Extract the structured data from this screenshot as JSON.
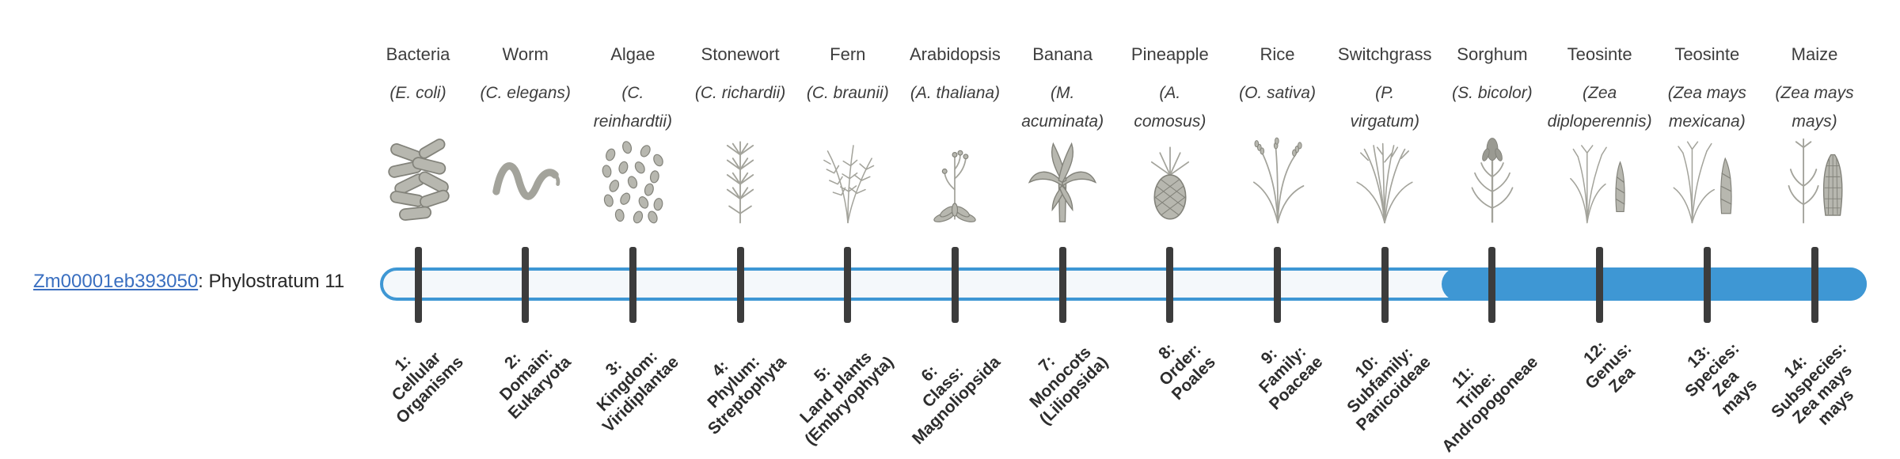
{
  "gene": {
    "id": "Zm00001eb393050",
    "suffix": ": Phylostratum 11",
    "phylostratum": 11
  },
  "track": {
    "color": "#3e97d4",
    "empty_color": "#f4f8fb",
    "filled_from_stratum": 11,
    "total_strata": 14
  },
  "organisms": [
    {
      "name": "Bacteria",
      "sci_lines": [
        "(E. coli)"
      ],
      "icon": "bacteria"
    },
    {
      "name": "Worm",
      "sci_lines": [
        "(C. elegans)"
      ],
      "icon": "worm"
    },
    {
      "name": "Algae",
      "sci_lines": [
        "(C.",
        "reinhardtii)"
      ],
      "icon": "algae"
    },
    {
      "name": "Stonewort",
      "sci_lines": [
        "(C. richardii)"
      ],
      "icon": "stonewort"
    },
    {
      "name": "Fern",
      "sci_lines": [
        "(C. braunii)"
      ],
      "icon": "fern"
    },
    {
      "name": "Arabidopsis",
      "sci_lines": [
        "(A. thaliana)"
      ],
      "icon": "arabidopsis"
    },
    {
      "name": "Banana",
      "sci_lines": [
        "(M.",
        "acuminata)"
      ],
      "icon": "banana"
    },
    {
      "name": "Pineapple",
      "sci_lines": [
        "(A.",
        "comosus)"
      ],
      "icon": "pineapple"
    },
    {
      "name": "Rice",
      "sci_lines": [
        "(O. sativa)"
      ],
      "icon": "rice"
    },
    {
      "name": "Switchgrass",
      "sci_lines": [
        "(P.",
        "virgatum)"
      ],
      "icon": "switchgrass"
    },
    {
      "name": "Sorghum",
      "sci_lines": [
        "(S. bicolor)"
      ],
      "icon": "sorghum"
    },
    {
      "name": "Teosinte",
      "sci_lines": [
        "(Zea",
        "diploperennis)"
      ],
      "icon": "teosinte-diploperennis"
    },
    {
      "name": "Teosinte",
      "sci_lines": [
        "(Zea mays",
        "mexicana)"
      ],
      "icon": "teosinte-mexicana"
    },
    {
      "name": "Maize",
      "sci_lines": [
        "(Zea mays",
        "mays)"
      ],
      "icon": "maize"
    }
  ],
  "strata": [
    {
      "label_lines": [
        "1:",
        "Cellular",
        "Organisms"
      ]
    },
    {
      "label_lines": [
        "2:",
        "Domain:",
        "Eukaryota"
      ]
    },
    {
      "label_lines": [
        "3:",
        "Kingdom:",
        "Viridiplantae"
      ]
    },
    {
      "label_lines": [
        "4:",
        "Phylum:",
        "Streptophyta"
      ]
    },
    {
      "label_lines": [
        "5:",
        "Land plants",
        "(Embryophyta)"
      ]
    },
    {
      "label_lines": [
        "6:",
        "Class:",
        "Magnoliopsida"
      ]
    },
    {
      "label_lines": [
        "7:",
        "Monocots",
        "(Liliopsida)"
      ]
    },
    {
      "label_lines": [
        "8:",
        "Order:",
        "Poales"
      ]
    },
    {
      "label_lines": [
        "9:",
        "Family:",
        "Poaceae"
      ]
    },
    {
      "label_lines": [
        "10:",
        "Subfamily:",
        "Panicoideae"
      ]
    },
    {
      "label_lines": [
        "11:",
        "Tribe:",
        "Andropogoneae"
      ]
    },
    {
      "label_lines": [
        "12:",
        "Genus:",
        "Zea"
      ]
    },
    {
      "label_lines": [
        "13:",
        "Species:",
        "Zea",
        "mays"
      ]
    },
    {
      "label_lines": [
        "14:",
        "Subspecies:",
        "Zea mays",
        "mays"
      ]
    }
  ]
}
